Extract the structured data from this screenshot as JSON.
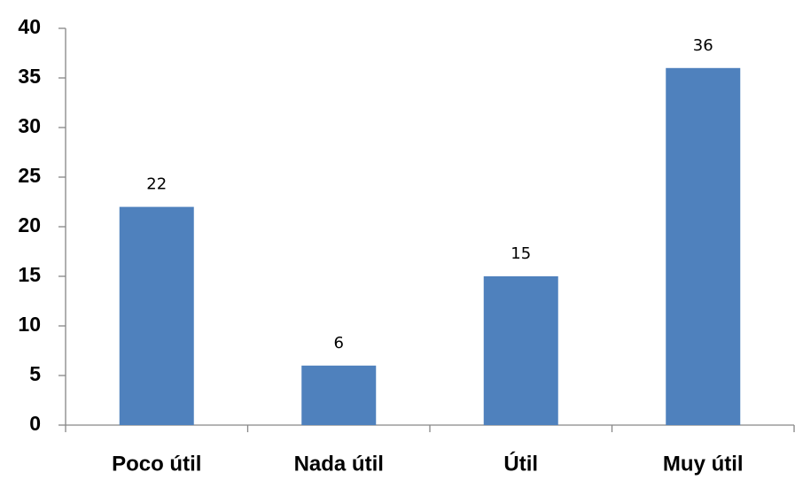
{
  "chart_data": {
    "type": "bar",
    "categories": [
      "Poco útil",
      "Nada útil",
      "Útil",
      "Muy útil"
    ],
    "values": [
      22,
      6,
      15,
      36
    ],
    "color": "#4f81bd",
    "ylim": [
      0,
      40
    ],
    "yticks": [
      0,
      5,
      10,
      15,
      20,
      25,
      30,
      35,
      40
    ],
    "grid": false
  }
}
